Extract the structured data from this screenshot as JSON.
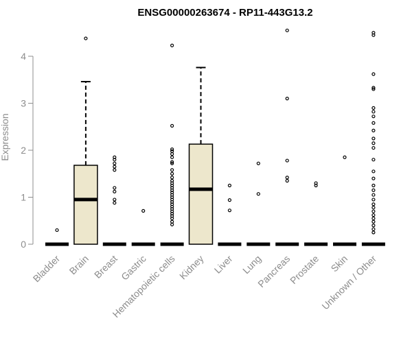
{
  "chart_data": {
    "type": "boxplot",
    "title": "ENSG00000263674 - RP11-443G13.2",
    "xlabel": "",
    "ylabel": "Expression",
    "ylim": [
      0,
      4.6
    ],
    "yticks": [
      0,
      1,
      2,
      3,
      4
    ],
    "grid": false,
    "legend": "none",
    "box_fill": "#ede7cc",
    "categories": [
      "Bladder",
      "Brain",
      "Breast",
      "Gastric",
      "Hematopoietic cells",
      "Kidney",
      "Liver",
      "Lung",
      "Pancreas",
      "Prostate",
      "Skin",
      "Unknown / Other"
    ],
    "boxes": [
      {
        "min": 0,
        "q1": 0,
        "median": 0,
        "q3": 0,
        "max": 0,
        "outliers": [
          0.3
        ]
      },
      {
        "min": 0,
        "q1": 0,
        "median": 0.95,
        "q3": 1.68,
        "max": 3.46,
        "outliers": [
          4.38
        ]
      },
      {
        "min": 0,
        "q1": 0,
        "median": 0,
        "q3": 0,
        "max": 0,
        "outliers": [
          0.88,
          0.95,
          1.12,
          1.2,
          1.58,
          1.65,
          1.72,
          1.8,
          1.85
        ]
      },
      {
        "min": 0,
        "q1": 0,
        "median": 0,
        "q3": 0,
        "max": 0,
        "outliers": [
          0.71
        ]
      },
      {
        "min": 0,
        "q1": 0,
        "median": 0,
        "q3": 0,
        "max": 0,
        "outliers": [
          0.42,
          0.48,
          0.55,
          0.6,
          0.65,
          0.7,
          0.75,
          0.8,
          0.85,
          0.9,
          0.95,
          1.0,
          1.05,
          1.1,
          1.15,
          1.2,
          1.25,
          1.3,
          1.35,
          1.42,
          1.5,
          1.58,
          1.72,
          1.75,
          1.85,
          1.92,
          1.98,
          2.02,
          2.52,
          4.23
        ]
      },
      {
        "min": 0,
        "q1": 0,
        "median": 1.17,
        "q3": 2.13,
        "max": 3.76,
        "outliers": []
      },
      {
        "min": 0,
        "q1": 0,
        "median": 0,
        "q3": 0,
        "max": 0,
        "outliers": [
          0.72,
          0.94,
          1.25
        ]
      },
      {
        "min": 0,
        "q1": 0,
        "median": 0,
        "q3": 0,
        "max": 0,
        "outliers": [
          1.07,
          1.72
        ]
      },
      {
        "min": 0,
        "q1": 0,
        "median": 0,
        "q3": 0,
        "max": 0,
        "outliers": [
          1.35,
          1.42,
          1.78,
          3.1,
          4.55
        ]
      },
      {
        "min": 0,
        "q1": 0,
        "median": 0,
        "q3": 0,
        "max": 0,
        "outliers": [
          1.25,
          1.3
        ]
      },
      {
        "min": 0,
        "q1": 0,
        "median": 0,
        "q3": 0,
        "max": 0,
        "outliers": [
          1.85
        ]
      },
      {
        "min": 0,
        "q1": 0,
        "median": 0,
        "q3": 0,
        "max": 0,
        "outliers": [
          0.25,
          0.32,
          0.4,
          0.48,
          0.55,
          0.62,
          0.7,
          0.78,
          0.85,
          0.95,
          1.05,
          1.15,
          1.25,
          1.4,
          1.55,
          1.8,
          2.05,
          2.15,
          2.25,
          2.42,
          2.58,
          2.72,
          2.82,
          2.9,
          3.3,
          3.33,
          3.62,
          4.45,
          4.5
        ]
      }
    ]
  }
}
